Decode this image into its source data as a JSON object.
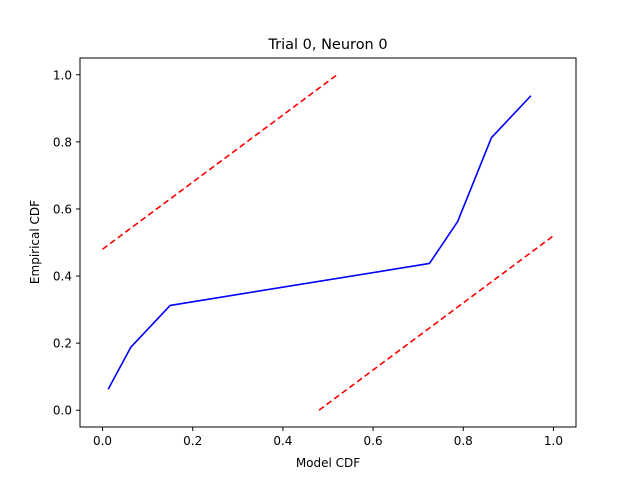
{
  "chart_data": {
    "type": "line",
    "title": "Trial 0, Neuron 0",
    "xlabel": "Model CDF",
    "ylabel": "Empirical CDF",
    "xlim": [
      -0.05,
      1.05
    ],
    "ylim": [
      -0.05,
      1.05
    ],
    "xticks": [
      0.0,
      0.2,
      0.4,
      0.6,
      0.8,
      1.0
    ],
    "xtick_labels": [
      "0.0",
      "0.2",
      "0.4",
      "0.6",
      "0.8",
      "1.0"
    ],
    "yticks": [
      0.0,
      0.2,
      0.4,
      0.6,
      0.8,
      1.0
    ],
    "ytick_labels": [
      "0.0",
      "0.2",
      "0.4",
      "0.6",
      "0.8",
      "1.0"
    ],
    "grid": false,
    "series": [
      {
        "style": "solid",
        "color": "#0000ff",
        "x": [
          0.0125,
          0.0625,
          0.15,
          0.725,
          0.7875,
          0.8625,
          0.95
        ],
        "y": [
          0.0625,
          0.1875,
          0.3125,
          0.4375,
          0.5625,
          0.8125,
          0.9375
        ]
      },
      {
        "style": "dashed",
        "color": "#ff0000",
        "x": [
          0.0,
          0.52
        ],
        "y": [
          0.48,
          1.0
        ]
      },
      {
        "style": "dashed",
        "color": "#ff0000",
        "x": [
          0.48,
          1.0
        ],
        "y": [
          0.0,
          0.52
        ]
      }
    ]
  }
}
